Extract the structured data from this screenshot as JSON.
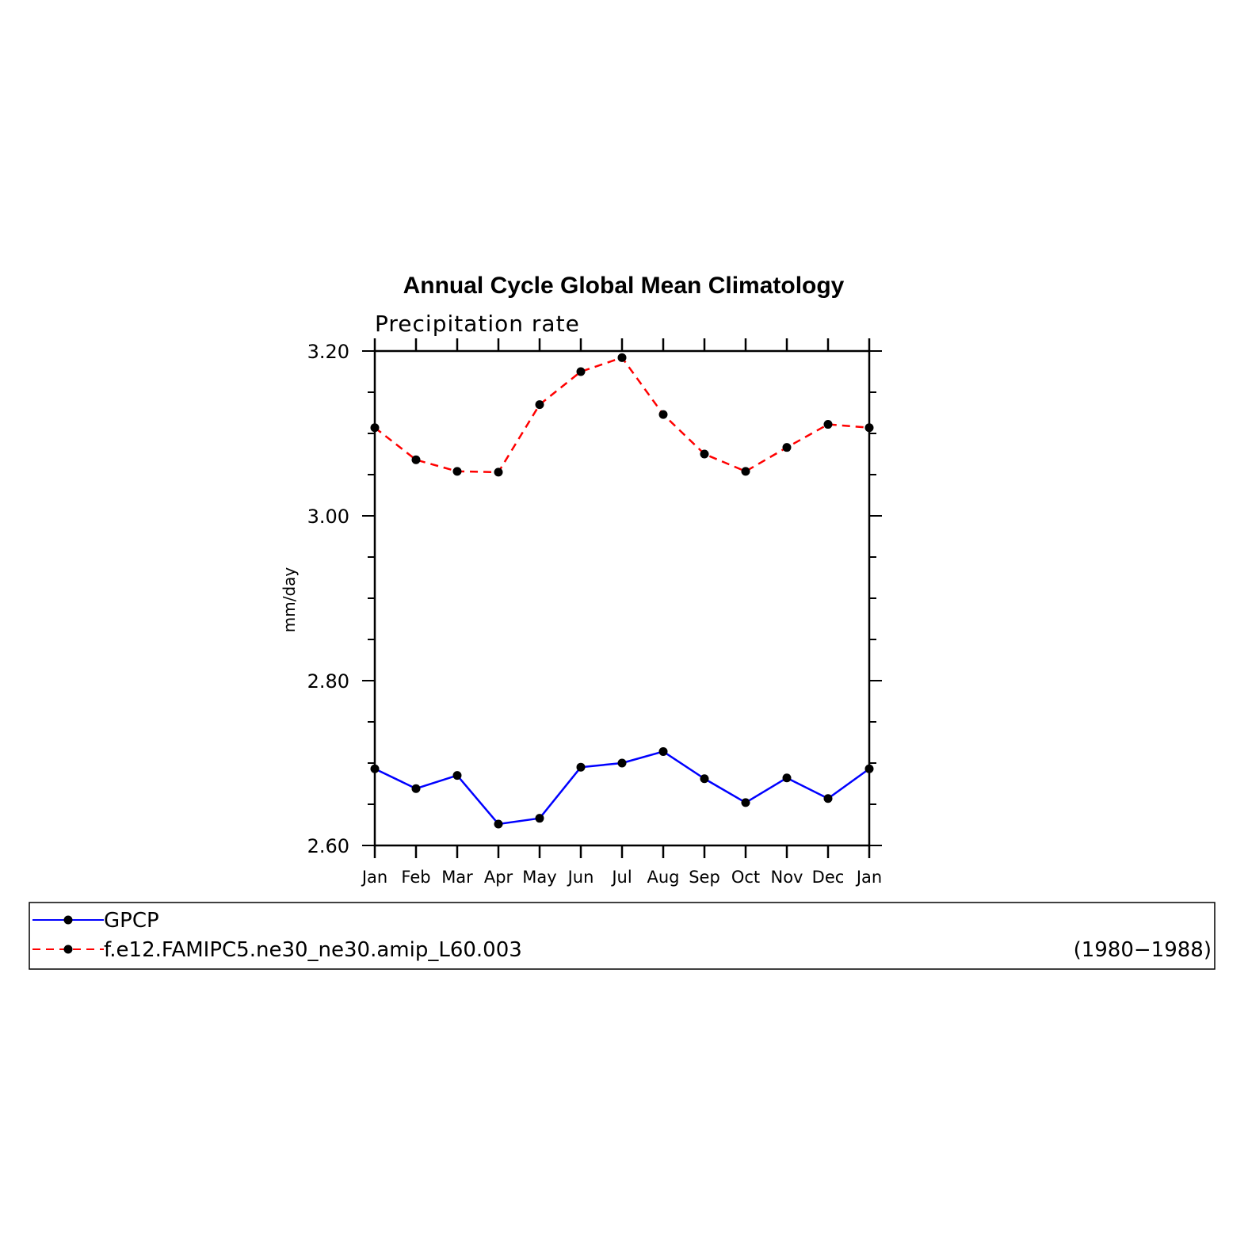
{
  "chart_data": {
    "type": "line",
    "title": "Annual Cycle Global Mean Climatology",
    "subtitle": "Precipitation rate",
    "ylabel": "mm/day",
    "xlabel": "",
    "ylim": [
      2.6,
      3.2
    ],
    "yticks": [
      "2.60",
      "2.80",
      "3.00",
      "3.20"
    ],
    "categories": [
      "Jan",
      "Feb",
      "Mar",
      "Apr",
      "May",
      "Jun",
      "Jul",
      "Aug",
      "Sep",
      "Oct",
      "Nov",
      "Dec",
      "Jan"
    ],
    "series": [
      {
        "name": "GPCP",
        "color": "#0000ff",
        "dash": "solid",
        "values": [
          2.693,
          2.669,
          2.685,
          2.626,
          2.633,
          2.695,
          2.7,
          2.714,
          2.681,
          2.652,
          2.682,
          2.657,
          2.693
        ]
      },
      {
        "name": "f.e12.FAMIPC5.ne30_ne30.amip_L60.003",
        "color": "#ff0000",
        "dash": "dashed",
        "values": [
          3.107,
          3.068,
          3.054,
          3.053,
          3.135,
          3.175,
          3.192,
          3.123,
          3.075,
          3.054,
          3.083,
          3.111,
          3.107
        ]
      }
    ],
    "legend": {
      "placement": "bottom",
      "period": "(1980−1988)"
    },
    "grid": false
  }
}
